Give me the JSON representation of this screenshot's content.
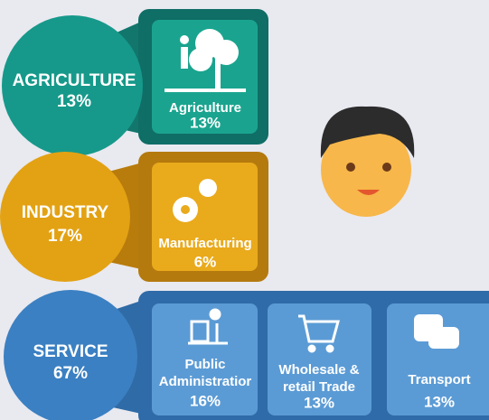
{
  "sectors": [
    {
      "name": "AGRICULTURE",
      "share": "13%",
      "subsectors": [
        {
          "label_lines": [
            "Agriculture"
          ],
          "share": "13%"
        }
      ]
    },
    {
      "name": "INDUSTRY",
      "share": "17%",
      "subsectors": [
        {
          "label_lines": [
            "Manufacturing"
          ],
          "share": "6%"
        }
      ]
    },
    {
      "name": "SERVICE",
      "share": "67%",
      "subsectors": [
        {
          "label_lines": [
            "Public",
            "Administratior"
          ],
          "share": "16%"
        },
        {
          "label_lines": [
            "Wholesale &",
            "retail Trade"
          ],
          "share": "13%"
        },
        {
          "label_lines": [
            "Transport"
          ],
          "share": "13%"
        }
      ]
    }
  ]
}
